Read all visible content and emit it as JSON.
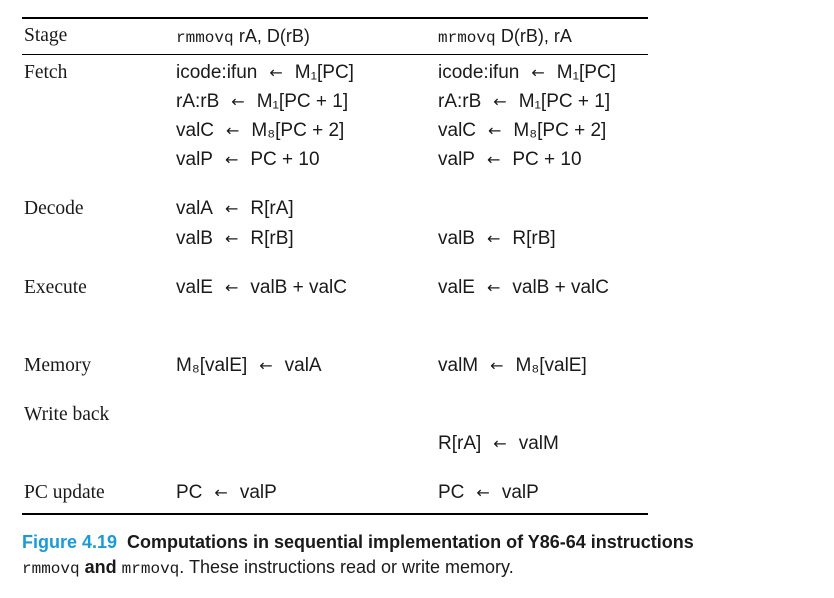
{
  "table": {
    "headers": {
      "stage": "Stage",
      "col1_op": "rmmovq",
      "col1_args": "rA, D(rB)",
      "col2_op": "mrmovq",
      "col2_args": "D(rB), rA"
    },
    "stages": {
      "fetch": "Fetch",
      "decode": "Decode",
      "execute": "Execute",
      "memory": "Memory",
      "write_back": "Write back",
      "pc_update": "PC update"
    },
    "rmmovq": {
      "fetch1_left": "icode:ifun",
      "fetch1_right": "M₁[PC]",
      "fetch2_left": "rA:rB",
      "fetch2_right": "M₁[PC + 1]",
      "fetch3_left": "valC",
      "fetch3_right": "M₈[PC + 2]",
      "fetch4_left": "valP",
      "fetch4_right": "PC + 10",
      "decode1_left": "valA",
      "decode1_right": "R[rA]",
      "decode2_left": "valB",
      "decode2_right": "R[rB]",
      "execute_left": "valE",
      "execute_right": "valB + valC",
      "memory_left": "M₈[valE]",
      "memory_right": "valA",
      "pc_left": "PC",
      "pc_right": "valP"
    },
    "mrmovq": {
      "fetch1_left": "icode:ifun",
      "fetch1_right": "M₁[PC]",
      "fetch2_left": "rA:rB",
      "fetch2_right": "M₁[PC + 1]",
      "fetch3_left": "valC",
      "fetch3_right": "M₈[PC + 2]",
      "fetch4_left": "valP",
      "fetch4_right": "PC + 10",
      "decode_left": "valB",
      "decode_right": "R[rB]",
      "execute_left": "valE",
      "execute_right": "valB + valC",
      "memory_left": "valM",
      "memory_right": "M₈[valE]",
      "writeback_left": "R[rA]",
      "writeback_right": "valM",
      "pc_left": "PC",
      "pc_right": "valP"
    },
    "arrow": "←"
  },
  "caption": {
    "figure_number": "Figure 4.19",
    "title": "Computations in sequential implementation of Y86-64 instructions",
    "mono1": "rmmovq",
    "and": "and",
    "mono2": "mrmovq",
    "rest": ". These instructions read or write memory."
  }
}
